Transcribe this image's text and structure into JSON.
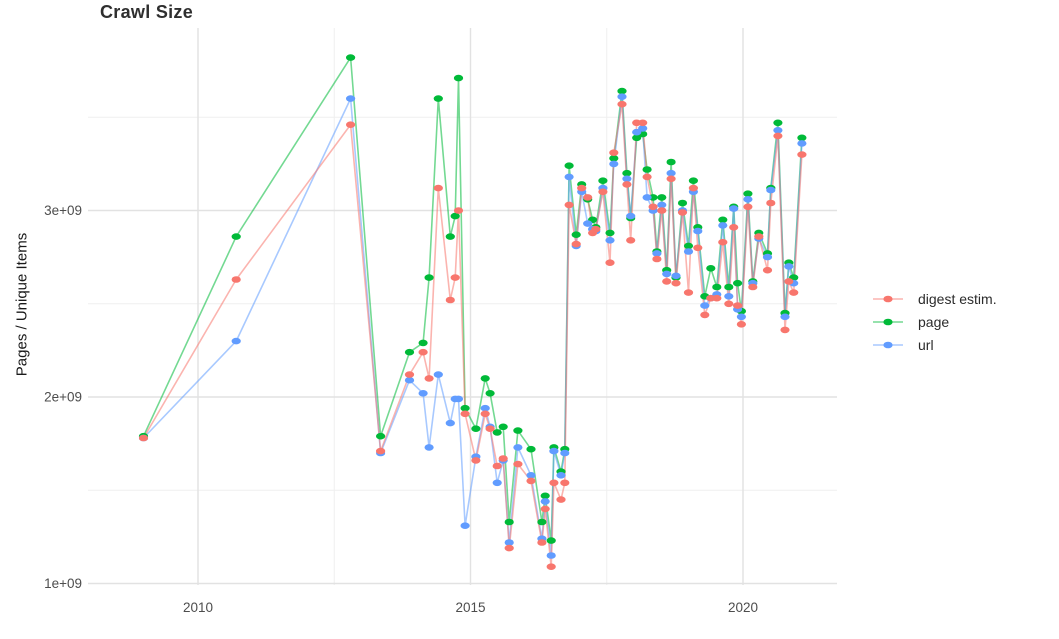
{
  "title": "Crawl Size",
  "y_axis": {
    "label": "Pages / Unique Items",
    "tick_labels": [
      "1e+09",
      "2e+09",
      "3e+09"
    ],
    "tick_values": [
      1000000000.0,
      2000000000.0,
      3000000000.0
    ],
    "minor_values": [
      1500000000.0,
      2500000000.0,
      3500000000.0
    ]
  },
  "x_axis": {
    "tick_labels": [
      "2010",
      "2015",
      "2020"
    ],
    "tick_values": [
      2010,
      2015,
      2020
    ],
    "minor_values": [
      2012.5,
      2017.5
    ]
  },
  "legend": {
    "position": "right",
    "items": [
      {
        "label": "digest estim.",
        "color": "#F8766D"
      },
      {
        "label": "page",
        "color": "#00BA38"
      },
      {
        "label": "url",
        "color": "#619CFF"
      }
    ]
  },
  "chart_data": {
    "type": "line",
    "title": "Crawl Size",
    "xlabel": "",
    "ylabel": "Pages / Unique Items",
    "xlim": [
      2008.0,
      2021.72
    ],
    "ylim": [
      990000000.0,
      3980000000.0
    ],
    "grid": true,
    "legend_position": "right",
    "x": [
      2009.0,
      2010.7,
      2012.8,
      2013.35,
      2013.88,
      2014.13,
      2014.24,
      2014.41,
      2014.63,
      2014.72,
      2014.78,
      2014.9,
      2015.1,
      2015.27,
      2015.36,
      2015.49,
      2015.6,
      2015.71,
      2015.87,
      2016.11,
      2016.31,
      2016.37,
      2016.48,
      2016.53,
      2016.66,
      2016.73,
      2016.81,
      2016.94,
      2017.04,
      2017.15,
      2017.24,
      2017.3,
      2017.43,
      2017.56,
      2017.63,
      2017.78,
      2017.87,
      2017.94,
      2018.05,
      2018.16,
      2018.24,
      2018.35,
      2018.42,
      2018.51,
      2018.6,
      2018.68,
      2018.77,
      2018.89,
      2019.0,
      2019.09,
      2019.17,
      2019.3,
      2019.41,
      2019.52,
      2019.63,
      2019.74,
      2019.83,
      2019.9,
      2019.97,
      2020.09,
      2020.18,
      2020.29,
      2020.45,
      2020.51,
      2020.64,
      2020.77,
      2020.84,
      2020.93,
      2021.08
    ],
    "series": [
      {
        "name": "digest estim.",
        "color": "#F8766D",
        "values": [
          1780000000.0,
          2630000000.0,
          3460000000.0,
          1710000000.0,
          2120000000.0,
          2240000000.0,
          2100000000.0,
          3120000000.0,
          2520000000.0,
          2640000000.0,
          3000000000.0,
          1910000000.0,
          1660000000.0,
          1910000000.0,
          1830000000.0,
          1630000000.0,
          1670000000.0,
          1190000000.0,
          1640000000.0,
          1550000000.0,
          1220000000.0,
          1400000000.0,
          1090000000.0,
          1540000000.0,
          1450000000.0,
          1540000000.0,
          3030000000.0,
          2820000000.0,
          3120000000.0,
          3070000000.0,
          2880000000.0,
          2900000000.0,
          3100000000.0,
          2720000000.0,
          3310000000.0,
          3570000000.0,
          3140000000.0,
          2840000000.0,
          3470000000.0,
          3470000000.0,
          3180000000.0,
          3020000000.0,
          2740000000.0,
          3000000000.0,
          2620000000.0,
          3170000000.0,
          2610000000.0,
          2990000000.0,
          2560000000.0,
          3120000000.0,
          2800000000.0,
          2440000000.0,
          2530000000.0,
          2530000000.0,
          2830000000.0,
          2500000000.0,
          2910000000.0,
          2490000000.0,
          2390000000.0,
          3020000000.0,
          2590000000.0,
          2860000000.0,
          2680000000.0,
          3040000000.0,
          3400000000.0,
          2360000000.0,
          2620000000.0,
          2560000000.0,
          3300000000.0
        ]
      },
      {
        "name": "page",
        "color": "#00BA38",
        "values": [
          1790000000.0,
          2860000000.0,
          3820000000.0,
          1790000000.0,
          2240000000.0,
          2290000000.0,
          2640000000.0,
          3600000000.0,
          2860000000.0,
          2970000000.0,
          3710000000.0,
          1940000000.0,
          1830000000.0,
          2100000000.0,
          2020000000.0,
          1810000000.0,
          1840000000.0,
          1330000000.0,
          1820000000.0,
          1720000000.0,
          1330000000.0,
          1470000000.0,
          1230000000.0,
          1730000000.0,
          1600000000.0,
          1720000000.0,
          3240000000.0,
          2870000000.0,
          3140000000.0,
          3060000000.0,
          2950000000.0,
          2910000000.0,
          3160000000.0,
          2880000000.0,
          3280000000.0,
          3640000000.0,
          3200000000.0,
          2960000000.0,
          3390000000.0,
          3410000000.0,
          3220000000.0,
          3070000000.0,
          2780000000.0,
          3070000000.0,
          2680000000.0,
          3260000000.0,
          2640000000.0,
          3040000000.0,
          2810000000.0,
          3160000000.0,
          2910000000.0,
          2540000000.0,
          2690000000.0,
          2590000000.0,
          2950000000.0,
          2590000000.0,
          3020000000.0,
          2610000000.0,
          2460000000.0,
          3090000000.0,
          2620000000.0,
          2880000000.0,
          2770000000.0,
          3120000000.0,
          3470000000.0,
          2450000000.0,
          2720000000.0,
          2640000000.0,
          3390000000.0
        ]
      },
      {
        "name": "url",
        "color": "#619CFF",
        "values": [
          1780000000.0,
          2300000000.0,
          3600000000.0,
          1700000000.0,
          2090000000.0,
          2020000000.0,
          1730000000.0,
          2120000000.0,
          1860000000.0,
          1990000000.0,
          1990000000.0,
          1310000000.0,
          1680000000.0,
          1940000000.0,
          1840000000.0,
          1540000000.0,
          1660000000.0,
          1220000000.0,
          1730000000.0,
          1580000000.0,
          1240000000.0,
          1440000000.0,
          1150000000.0,
          1710000000.0,
          1580000000.0,
          1700000000.0,
          3180000000.0,
          2810000000.0,
          3100000000.0,
          2930000000.0,
          2900000000.0,
          2890000000.0,
          3120000000.0,
          2840000000.0,
          3250000000.0,
          3610000000.0,
          3170000000.0,
          2970000000.0,
          3420000000.0,
          3440000000.0,
          3070000000.0,
          3000000000.0,
          2770000000.0,
          3030000000.0,
          2660000000.0,
          3200000000.0,
          2650000000.0,
          3000000000.0,
          2780000000.0,
          3100000000.0,
          2890000000.0,
          2490000000.0,
          2530000000.0,
          2550000000.0,
          2920000000.0,
          2540000000.0,
          3010000000.0,
          2470000000.0,
          2430000000.0,
          3060000000.0,
          2610000000.0,
          2850000000.0,
          2750000000.0,
          3110000000.0,
          3430000000.0,
          2430000000.0,
          2700000000.0,
          2610000000.0,
          3360000000.0
        ]
      }
    ]
  },
  "style": {
    "background": "#ffffff",
    "grid_major_color": "#e2e2e2",
    "grid_minor_color": "#efefef",
    "tick_text_color": "#4d4d4d",
    "line_opacity": 0.55,
    "point_rx": 4.6,
    "point_ry": 3.3
  }
}
